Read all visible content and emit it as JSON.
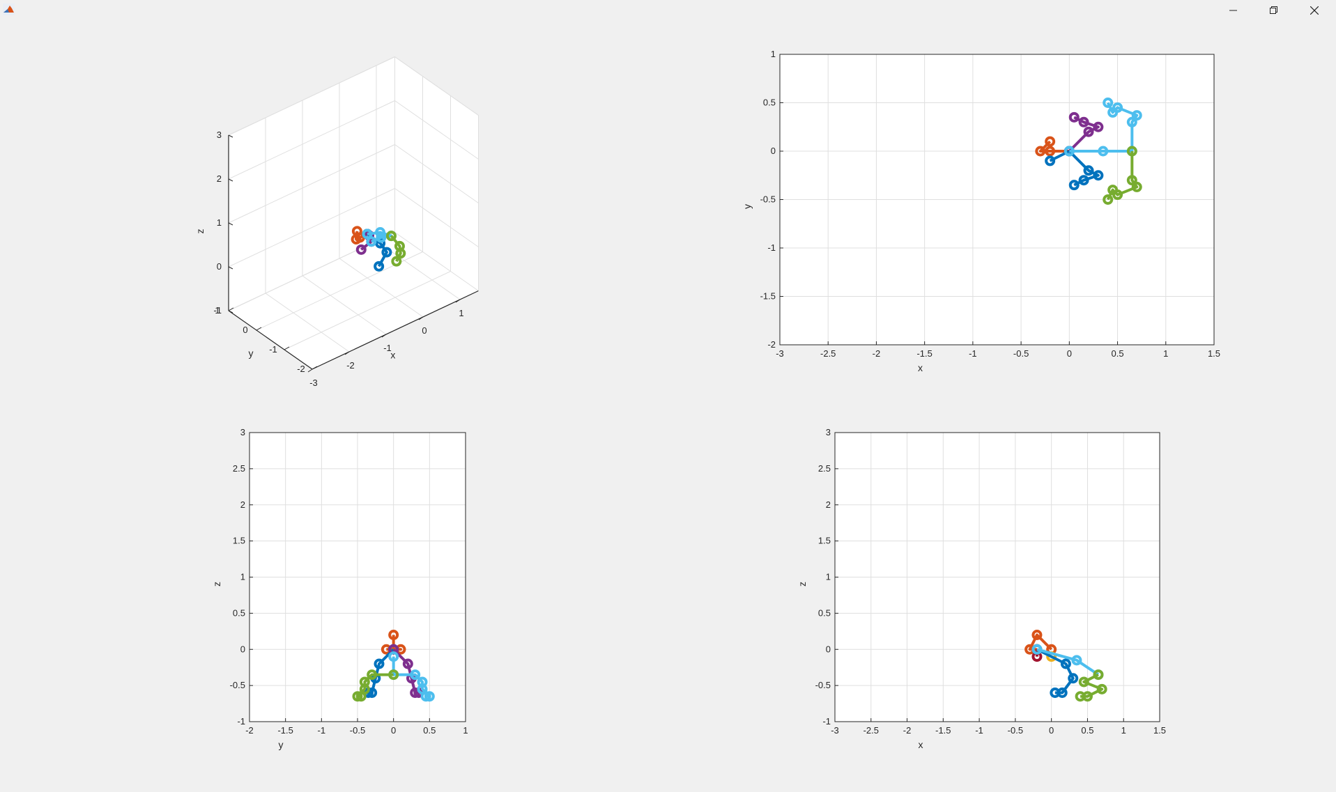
{
  "window": {
    "icons": {
      "app": "matlab-icon",
      "minimize": "minimize-icon",
      "maximize": "restore-icon",
      "close": "close-icon"
    }
  },
  "colors": {
    "background": "#f0f0f0",
    "axes_bg": "#ffffff",
    "grid": "#dfdfdf",
    "axis_line": "#262626",
    "thumb": "#d95319",
    "index": "#0072bd",
    "middle": "#7e2f8e",
    "ring": "#4dbeee",
    "pinky": "#77ac30",
    "alt_a": "#edb120",
    "alt_b": "#a2142f"
  },
  "plots": {
    "p3d": {
      "xlabel": "x",
      "ylabel": "y",
      "zlabel": "z",
      "xticks": [
        "-3",
        "-2",
        "-1",
        "0",
        "1"
      ],
      "yticks": [
        "-2",
        "-1",
        "0",
        "1"
      ],
      "zticks": [
        "-1",
        "0",
        "1",
        "2",
        "3"
      ]
    },
    "xy": {
      "xlabel": "x",
      "ylabel": "y",
      "xticks": [
        "-3",
        "-2.5",
        "-2",
        "-1.5",
        "-1",
        "-0.5",
        "0",
        "0.5",
        "1",
        "1.5"
      ],
      "yticks": [
        "-2",
        "-1.5",
        "-1",
        "-0.5",
        "0",
        "0.5",
        "1"
      ]
    },
    "yz": {
      "xlabel": "y",
      "ylabel": "z",
      "xticks": [
        "-2",
        "-1.5",
        "-1",
        "-0.5",
        "0",
        "0.5",
        "1"
      ],
      "yticks": [
        "-1",
        "-0.5",
        "0",
        "0.5",
        "1",
        "1.5",
        "2",
        "2.5",
        "3"
      ]
    },
    "xz": {
      "xlabel": "x",
      "ylabel": "z",
      "xticks": [
        "-3",
        "-2.5",
        "-2",
        "-1.5",
        "-1",
        "-0.5",
        "0",
        "0.5",
        "1",
        "1.5"
      ],
      "yticks": [
        "-1",
        "-0.5",
        "0",
        "0.5",
        "1",
        "1.5",
        "2",
        "2.5",
        "3"
      ]
    }
  },
  "chart_data": [
    {
      "type": "scatter",
      "view": "3d",
      "xlabel": "x",
      "ylabel": "y",
      "zlabel": "z",
      "xlim": [
        -3,
        1.5
      ],
      "ylim": [
        -2,
        1
      ],
      "zlim": [
        -1,
        3
      ],
      "grid": true,
      "series": [
        {
          "color": "#d95319",
          "points": [
            [
              0,
              0,
              0
            ],
            [
              -0.2,
              0,
              0
            ],
            [
              -0.3,
              0,
              0
            ],
            [
              -0.2,
              0.1,
              0.1
            ]
          ]
        },
        {
          "color": "#7e2f8e",
          "points": [
            [
              0,
              0,
              0
            ],
            [
              0.2,
              0.2,
              -0.2
            ],
            [
              0.3,
              0.25,
              -0.4
            ],
            [
              0.1,
              0.35,
              -0.55
            ]
          ]
        },
        {
          "color": "#0072bd",
          "points": [
            [
              0,
              0,
              0
            ],
            [
              0.2,
              -0.2,
              -0.2
            ],
            [
              0.3,
              -0.3,
              -0.4
            ],
            [
              0.05,
              -0.35,
              -0.6
            ]
          ]
        },
        {
          "color": "#4dbeee",
          "points": [
            [
              0,
              0,
              0
            ],
            [
              0.35,
              0,
              -0.1
            ],
            [
              0.65,
              0,
              -0.3
            ],
            [
              0.6,
              0.3,
              -0.45
            ],
            [
              0.45,
              0.45,
              -0.55
            ]
          ]
        },
        {
          "color": "#77ac30",
          "points": [
            [
              0.65,
              0,
              -0.3
            ],
            [
              0.65,
              -0.3,
              -0.4
            ],
            [
              0.6,
              -0.4,
              -0.5
            ],
            [
              0.45,
              -0.45,
              -0.6
            ]
          ]
        }
      ]
    },
    {
      "type": "line",
      "view": "xy",
      "xlabel": "x",
      "ylabel": "y",
      "xlim": [
        -3,
        1.5
      ],
      "ylim": [
        -2,
        1
      ],
      "grid": true,
      "series": [
        {
          "color": "#d95319",
          "points": [
            [
              0,
              0
            ],
            [
              -0.2,
              0
            ],
            [
              -0.3,
              0
            ],
            [
              -0.2,
              0.1
            ]
          ]
        },
        {
          "color": "#0072bd",
          "points": [
            [
              0,
              0
            ],
            [
              -0.2,
              -0.1
            ]
          ]
        },
        {
          "color": "#7e2f8e",
          "points": [
            [
              0,
              0
            ],
            [
              0.2,
              0.2
            ],
            [
              0.3,
              0.25
            ],
            [
              0.15,
              0.3
            ],
            [
              0.05,
              0.35
            ]
          ]
        },
        {
          "color": "#0072bd",
          "points": [
            [
              0,
              0
            ],
            [
              0.2,
              -0.2
            ],
            [
              0.3,
              -0.25
            ],
            [
              0.15,
              -0.3
            ],
            [
              0.05,
              -0.35
            ]
          ]
        },
        {
          "color": "#4dbeee",
          "points": [
            [
              0,
              0
            ],
            [
              0.35,
              0
            ],
            [
              0.65,
              0
            ],
            [
              0.65,
              0.3
            ],
            [
              0.7,
              0.37
            ],
            [
              0.5,
              0.45
            ],
            [
              0.45,
              0.4
            ],
            [
              0.4,
              0.5
            ]
          ]
        },
        {
          "color": "#77ac30",
          "points": [
            [
              0.65,
              0
            ],
            [
              0.65,
              -0.3
            ],
            [
              0.7,
              -0.37
            ],
            [
              0.5,
              -0.45
            ],
            [
              0.45,
              -0.4
            ],
            [
              0.4,
              -0.5
            ]
          ]
        }
      ]
    },
    {
      "type": "line",
      "view": "yz",
      "xlabel": "y",
      "ylabel": "z",
      "xlim": [
        -2,
        1
      ],
      "ylim": [
        -1,
        3
      ],
      "grid": true,
      "series": [
        {
          "color": "#d95319",
          "points": [
            [
              0,
              0.2
            ],
            [
              0,
              0
            ],
            [
              0.1,
              0
            ],
            [
              -0.1,
              0
            ]
          ]
        },
        {
          "color": "#0072bd",
          "points": [
            [
              0,
              0
            ],
            [
              -0.2,
              -0.2
            ],
            [
              -0.25,
              -0.4
            ],
            [
              -0.3,
              -0.6
            ],
            [
              -0.35,
              -0.6
            ]
          ]
        },
        {
          "color": "#7e2f8e",
          "points": [
            [
              0,
              0
            ],
            [
              0.2,
              -0.2
            ],
            [
              0.25,
              -0.4
            ],
            [
              0.3,
              -0.6
            ],
            [
              0.35,
              -0.6
            ]
          ]
        },
        {
          "color": "#4dbeee",
          "points": [
            [
              0,
              -0.1
            ],
            [
              0,
              -0.35
            ],
            [
              0.3,
              -0.35
            ],
            [
              0.4,
              -0.45
            ],
            [
              0.4,
              -0.55
            ],
            [
              0.5,
              -0.65
            ],
            [
              0.45,
              -0.65
            ]
          ]
        },
        {
          "color": "#77ac30",
          "points": [
            [
              0,
              -0.35
            ],
            [
              -0.3,
              -0.35
            ],
            [
              -0.4,
              -0.45
            ],
            [
              -0.4,
              -0.55
            ],
            [
              -0.5,
              -0.65
            ],
            [
              -0.45,
              -0.65
            ]
          ]
        }
      ]
    },
    {
      "type": "line",
      "view": "xz",
      "xlabel": "x",
      "ylabel": "z",
      "xlim": [
        -3,
        1.5
      ],
      "ylim": [
        -1,
        3
      ],
      "grid": true,
      "series": [
        {
          "color": "#d95319",
          "points": [
            [
              0,
              0
            ],
            [
              -0.2,
              0.2
            ],
            [
              -0.3,
              0
            ],
            [
              -0.2,
              0
            ]
          ]
        },
        {
          "color": "#a2142f",
          "points": [
            [
              -0.2,
              0
            ],
            [
              -0.2,
              -0.1
            ]
          ]
        },
        {
          "color": "#edb120",
          "points": [
            [
              -0.2,
              0
            ],
            [
              0,
              -0.1
            ]
          ]
        },
        {
          "color": "#0072bd",
          "points": [
            [
              -0.2,
              0
            ],
            [
              0.2,
              -0.2
            ],
            [
              0.3,
              -0.4
            ],
            [
              0.15,
              -0.6
            ],
            [
              0.05,
              -0.6
            ]
          ]
        },
        {
          "color": "#4dbeee",
          "points": [
            [
              -0.2,
              0
            ],
            [
              0.35,
              -0.15
            ],
            [
              0.65,
              -0.35
            ]
          ]
        },
        {
          "color": "#77ac30",
          "points": [
            [
              0.65,
              -0.35
            ],
            [
              0.45,
              -0.45
            ],
            [
              0.7,
              -0.55
            ],
            [
              0.5,
              -0.65
            ],
            [
              0.4,
              -0.65
            ]
          ]
        }
      ]
    }
  ]
}
